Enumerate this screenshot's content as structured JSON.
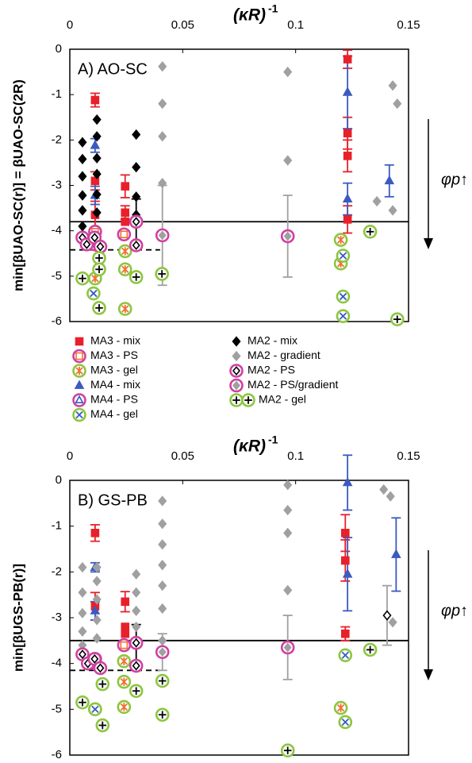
{
  "chart_data": [
    {
      "type": "scatter",
      "title": "A) AO-SC",
      "xlabel": "(κR)",
      "xlabel_superscript": "-1",
      "ylabel": "min[βUAO-SC(r)] = βUAO-SC(2R)",
      "annotation": "φp↑",
      "xlim": [
        0,
        0.15
      ],
      "ylim": [
        -6,
        0
      ],
      "xticks": [
        0,
        0.05,
        0.1,
        0.15
      ],
      "yticks": [
        -6,
        -5,
        -4,
        -3,
        -2,
        -1,
        0
      ],
      "legend": true,
      "reference_lines": [
        {
          "value": -3.8,
          "style": "solid"
        },
        {
          "value": -4.42,
          "style": "dashed",
          "x_end": 0.04
        }
      ],
      "series": [
        {
          "name": "MA3 - mix",
          "marker": "square",
          "color": "#e8202a",
          "x": [
            0.0112,
            0.0112,
            0.0112,
            0.0245,
            0.0245,
            0.0245,
            0.123,
            0.123,
            0.123,
            0.123
          ],
          "values": [
            -1.12,
            -2.9,
            -3.65,
            -3.02,
            -3.6,
            -3.8,
            -0.22,
            -1.85,
            -2.35,
            -3.75
          ],
          "errors": [
            0.15,
            0.2,
            0.3,
            0.25,
            0.15,
            null,
            0.2,
            0.35,
            0.35,
            0.3
          ]
        },
        {
          "name": "MA3 - PS",
          "marker": "ring-square",
          "color": "#f07030",
          "ring": "#d040a0",
          "x": [
            0.0112,
            0.024
          ],
          "values": [
            -4.02,
            -4.08
          ]
        },
        {
          "name": "MA3 - gel",
          "marker": "ring-asterisk",
          "color": "#f07030",
          "ring": "#8cc63f",
          "x": [
            0.0112,
            0.0245,
            0.0245,
            0.0245,
            0.12,
            0.12
          ],
          "values": [
            -5.05,
            -4.45,
            -4.85,
            -5.72,
            -4.2,
            -4.72
          ]
        },
        {
          "name": "MA4 - mix",
          "marker": "triangle",
          "color": "#3a5bbf",
          "x": [
            0.0112,
            0.0112,
            0.123,
            0.123,
            0.1415
          ],
          "values": [
            -2.12,
            -3.22,
            -0.95,
            -3.3,
            -2.9
          ],
          "errors": [
            0.15,
            0.2,
            0.8,
            0.35,
            0.35
          ]
        },
        {
          "name": "MA4 - PS",
          "marker": "ring-triangle",
          "color": "#3a5bbf",
          "ring": "#d040a0",
          "x": [
            0.0112
          ],
          "values": [
            -4.3
          ]
        },
        {
          "name": "MA4 - gel",
          "marker": "ring-x",
          "color": "#3a5bbf",
          "ring": "#8cc63f",
          "x": [
            0.0105,
            0.121,
            0.121,
            0.121
          ],
          "values": [
            -5.38,
            -4.55,
            -5.45,
            -5.88
          ]
        },
        {
          "name": "MA2 - mix",
          "marker": "diamond",
          "color": "#000000",
          "x": [
            0.0056,
            0.0056,
            0.0056,
            0.0056,
            0.0056,
            0.0056,
            0.012,
            0.012,
            0.012,
            0.012,
            0.012,
            0.012,
            0.0294,
            0.0294,
            0.0294,
            0.0294
          ],
          "values": [
            -2.05,
            -2.42,
            -2.8,
            -3.22,
            -3.55,
            -3.9,
            -1.55,
            -1.92,
            -2.4,
            -2.75,
            -3.2,
            -3.6,
            -1.88,
            -2.6,
            -3.25,
            -3.65
          ]
        },
        {
          "name": "MA2 - gradient",
          "marker": "diamond",
          "color": "#a0a0a0",
          "x": [
            0.041,
            0.041,
            0.041,
            0.041,
            0.0965,
            0.0965,
            0.143,
            0.145,
            0.136,
            0.143
          ],
          "values": [
            -0.38,
            -1.2,
            -1.92,
            -2.95,
            -0.5,
            -2.45,
            -0.8,
            -1.2,
            -3.35,
            -3.55
          ]
        },
        {
          "name": "MA2 - PS",
          "marker": "ring-diamond",
          "color": "#000000",
          "ring": "#d040a0",
          "x": [
            0.0056,
            0.0075,
            0.011,
            0.0135,
            0.0294,
            0.0294
          ],
          "values": [
            -4.15,
            -4.3,
            -4.15,
            -4.35,
            -3.8,
            -4.32
          ],
          "errors": [
            null,
            null,
            null,
            null,
            0.5,
            null
          ]
        },
        {
          "name": "MA2 - PS/gradient",
          "marker": "ring-diamond-filled",
          "color": "#a0a0a0",
          "ring": "#d040a0",
          "x": [
            0.041,
            0.0965
          ],
          "values": [
            -4.1,
            -4.12
          ],
          "errors": [
            1.1,
            0.9
          ]
        },
        {
          "name": "MA2 - gel",
          "marker": "ring-plus",
          "color": "#000000",
          "ring": "#8cc63f",
          "x": [
            0.0056,
            0.013,
            0.013,
            0.013,
            0.0294,
            0.0408,
            0.133,
            0.145
          ],
          "values": [
            -5.05,
            -4.6,
            -4.85,
            -5.7,
            -5.02,
            -4.95,
            -4.02,
            -5.95
          ]
        }
      ]
    },
    {
      "type": "scatter",
      "title": "B) GS-PB",
      "xlabel": "(κR)",
      "xlabel_superscript": "-1",
      "ylabel": "min[βUGS-PB(r)]",
      "annotation": "φp↑",
      "xlim": [
        0,
        0.15
      ],
      "ylim": [
        -6,
        0
      ],
      "xticks": [
        0,
        0.05,
        0.1,
        0.15
      ],
      "yticks": [
        -6,
        -5,
        -4,
        -3,
        -2,
        -1,
        0
      ],
      "legend": false,
      "reference_lines": [
        {
          "value": -3.5,
          "style": "solid"
        },
        {
          "value": -4.15,
          "style": "dashed",
          "x_end": 0.04
        }
      ],
      "series": [
        {
          "marker": "square",
          "color": "#e8202a",
          "x": [
            0.0112,
            0.0112,
            0.0245,
            0.0245,
            0.0245,
            0.122,
            0.122,
            0.122
          ],
          "values": [
            -1.15,
            -2.75,
            -2.65,
            -3.2,
            -3.35,
            -1.15,
            -1.75,
            -3.35
          ],
          "errors": [
            0.18,
            0.3,
            0.22,
            null,
            null,
            0.4,
            0.45,
            0.15
          ]
        },
        {
          "marker": "ring-square",
          "color": "#f07030",
          "ring": "#d040a0",
          "x": [
            0.0112,
            0.024
          ],
          "values": [
            -3.9,
            -3.6
          ]
        },
        {
          "marker": "ring-asterisk",
          "color": "#f07030",
          "ring": "#8cc63f",
          "x": [
            0.0112,
            0.024,
            0.024,
            0.024,
            0.12
          ],
          "values": [
            -5.0,
            -3.95,
            -4.4,
            -4.95,
            -4.97
          ]
        },
        {
          "marker": "triangle",
          "color": "#3a5bbf",
          "x": [
            0.0112,
            0.0112,
            0.0112,
            0.123,
            0.123,
            0.1445
          ],
          "values": [
            -1.9,
            -2.85,
            -4.05,
            -0.05,
            -2.05,
            -1.62
          ],
          "errors": [
            0.1,
            0.2,
            null,
            0.6,
            0.8,
            0.8
          ]
        },
        {
          "marker": "ring-triangle",
          "color": "#3a5bbf",
          "ring": "#d040a0",
          "x": [
            0.0112
          ],
          "values": [
            -4.0
          ]
        },
        {
          "marker": "ring-x",
          "color": "#3a5bbf",
          "ring": "#8cc63f",
          "x": [
            0.0112,
            0.122,
            0.122
          ],
          "values": [
            -5.0,
            -3.82,
            -5.28
          ]
        },
        {
          "marker": "diamond",
          "color": "#a0a0a0",
          "x": [
            0.0056,
            0.0056,
            0.0056,
            0.0056,
            0.0056,
            0.0056,
            0.012,
            0.012,
            0.012,
            0.012,
            0.012,
            0.0294,
            0.0294,
            0.0294,
            0.0294,
            0.041,
            0.041,
            0.041,
            0.041,
            0.041,
            0.041,
            0.041,
            0.0965,
            0.0965,
            0.0965,
            0.0965,
            0.139,
            0.142,
            0.143
          ],
          "values": [
            -1.9,
            -2.45,
            -2.9,
            -3.3,
            -3.6,
            -3.75,
            -1.9,
            -2.2,
            -2.6,
            -3.05,
            -3.45,
            -2.05,
            -2.45,
            -2.85,
            -3.2,
            -0.45,
            -0.95,
            -1.4,
            -1.85,
            -2.3,
            -2.8,
            -3.5,
            -0.1,
            -0.65,
            -1.15,
            -2.4,
            -0.2,
            -0.35,
            -3.1
          ]
        },
        {
          "marker": "ring-diamond",
          "color": "#000000",
          "ring": "#d040a0",
          "x": [
            0.0056,
            0.008,
            0.011,
            0.0135,
            0.0294,
            0.0294
          ],
          "values": [
            -3.8,
            -4.0,
            -3.9,
            -4.1,
            -3.55,
            -4.05
          ],
          "errors": [
            null,
            null,
            null,
            null,
            0.4,
            null
          ]
        },
        {
          "marker": "diamond-hollow",
          "color": "#000000",
          "error_color": "#a0a0a0",
          "x": [
            0.1405
          ],
          "values": [
            -2.95
          ],
          "errors": [
            0.65
          ]
        },
        {
          "marker": "ring-diamond-filled",
          "color": "#a0a0a0",
          "ring": "#d040a0",
          "x": [
            0.041,
            0.0965
          ],
          "values": [
            -3.75,
            -3.65
          ],
          "errors": [
            0.4,
            0.7
          ]
        },
        {
          "marker": "ring-plus",
          "color": "#000000",
          "ring": "#8cc63f",
          "x": [
            0.0056,
            0.0145,
            0.0145,
            0.0294,
            0.041,
            0.041,
            0.0965,
            0.133
          ],
          "values": [
            -4.85,
            -4.45,
            -5.35,
            -4.6,
            -4.38,
            -5.12,
            -5.9,
            -3.7
          ]
        }
      ]
    }
  ]
}
